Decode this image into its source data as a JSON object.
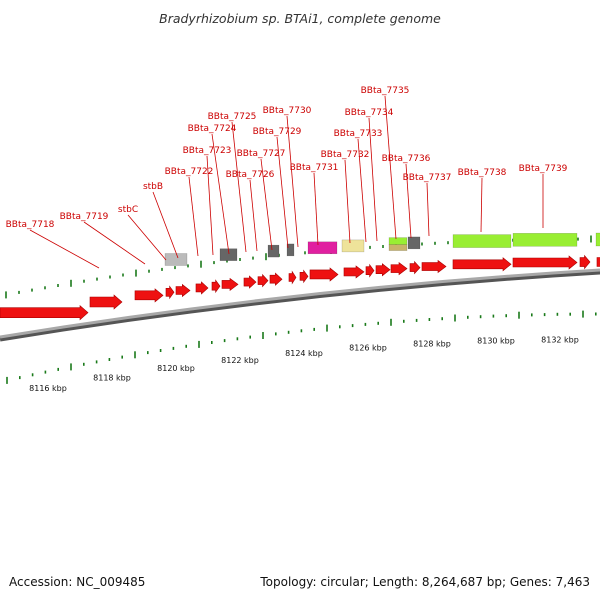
{
  "title": "Bradyrhizobium sp. BTAi1, complete genome",
  "footer": {
    "accession": "Accession: NC_009485",
    "topology": "Topology: circular; Length: 8,264,687 bp; Genes: 7,463"
  },
  "colors": {
    "gene_red": "#ee1111",
    "label_red": "#cc0000",
    "tick_green": "#1a7a1a",
    "track_gray": "#888888",
    "rna_gray": "#666666",
    "light_gray": "#bbbbbb",
    "magenta": "#e020a0",
    "khaki": "#eee39a",
    "lime": "#99ee33"
  },
  "scale": {
    "unit": "kbp",
    "ticks": [
      {
        "kbp": 8116,
        "label": "8116 kbp"
      },
      {
        "kbp": 8118,
        "label": "8118 kbp"
      },
      {
        "kbp": 8120,
        "label": "8120 kbp"
      },
      {
        "kbp": 8122,
        "label": "8122 kbp"
      },
      {
        "kbp": 8124,
        "label": "8124 kbp"
      },
      {
        "kbp": 8126,
        "label": "8126 kbp"
      },
      {
        "kbp": 8128,
        "label": "8128 kbp"
      },
      {
        "kbp": 8130,
        "label": "8130 kbp"
      },
      {
        "kbp": 8132,
        "label": "8132 kbp"
      }
    ]
  },
  "genes": [
    {
      "label": "BBta_7718"
    },
    {
      "label": "BBta_7719"
    },
    {
      "label": "stbC"
    },
    {
      "label": "stbB"
    },
    {
      "label": "BBta_7722"
    },
    {
      "label": "BBta_7723"
    },
    {
      "label": "BBta_7724"
    },
    {
      "label": "BBta_7725"
    },
    {
      "label": "BBta_7726"
    },
    {
      "label": "BBta_7727"
    },
    {
      "label": "BBta_7729"
    },
    {
      "label": "BBta_7730"
    },
    {
      "label": "BBta_7731"
    },
    {
      "label": "BBta_7732"
    },
    {
      "label": "BBta_7733"
    },
    {
      "label": "BBta_7734"
    },
    {
      "label": "BBta_7735"
    },
    {
      "label": "BBta_7736"
    },
    {
      "label": "BBta_7737"
    },
    {
      "label": "BBta_7738"
    },
    {
      "label": "BBta_7739"
    }
  ]
}
